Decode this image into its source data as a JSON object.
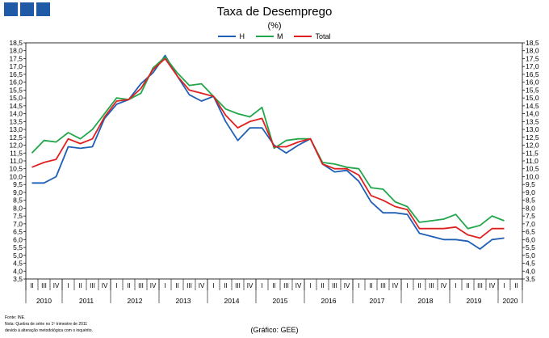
{
  "chart_data": {
    "type": "line",
    "title": "Taxa de Desemprego",
    "subtitle": "(%)",
    "ylim": [
      3.5,
      18.5
    ],
    "ytick_step": 0.5,
    "grid": false,
    "legend_position": "top-center",
    "quarter_labels": [
      "II",
      "III",
      "IV",
      "I",
      "II",
      "III",
      "IV",
      "I",
      "II",
      "III",
      "IV",
      "I",
      "II",
      "III",
      "IV",
      "I",
      "II",
      "III",
      "IV",
      "I",
      "II",
      "III",
      "IV",
      "I",
      "II",
      "III",
      "IV",
      "I",
      "II",
      "III",
      "IV",
      "I",
      "II",
      "III",
      "IV",
      "I",
      "II",
      "III",
      "IV",
      "I",
      "II"
    ],
    "year_labels": [
      {
        "label": "2010",
        "start": 0,
        "end": 2
      },
      {
        "label": "2011",
        "start": 3,
        "end": 6
      },
      {
        "label": "2012",
        "start": 7,
        "end": 10
      },
      {
        "label": "2013",
        "start": 11,
        "end": 14
      },
      {
        "label": "2014",
        "start": 15,
        "end": 18
      },
      {
        "label": "2015",
        "start": 19,
        "end": 22
      },
      {
        "label": "2016",
        "start": 23,
        "end": 26
      },
      {
        "label": "2017",
        "start": 27,
        "end": 30
      },
      {
        "label": "2018",
        "start": 31,
        "end": 34
      },
      {
        "label": "2019",
        "start": 35,
        "end": 38
      },
      {
        "label": "2020",
        "start": 39,
        "end": 40
      }
    ],
    "series": [
      {
        "name": "H",
        "color": "#1f5fb5",
        "values": [
          9.6,
          9.6,
          10.0,
          11.9,
          11.8,
          11.9,
          13.7,
          14.6,
          14.9,
          15.9,
          16.6,
          17.7,
          16.4,
          15.2,
          14.8,
          15.1,
          13.5,
          12.3,
          13.1,
          13.1,
          12.0,
          11.5,
          12.0,
          12.4,
          10.8,
          10.3,
          10.4,
          9.7,
          8.4,
          7.7,
          7.7,
          7.6,
          6.4,
          6.2,
          6.0,
          6.0,
          5.9,
          5.4,
          6.0,
          6.1,
          null
        ]
      },
      {
        "name": "M",
        "color": "#22a64a",
        "values": [
          11.5,
          12.3,
          12.2,
          12.8,
          12.4,
          13.0,
          14.0,
          15.0,
          14.9,
          15.3,
          16.9,
          17.6,
          16.6,
          15.8,
          15.9,
          15.1,
          14.3,
          14.0,
          13.8,
          14.4,
          11.8,
          12.3,
          12.4,
          12.4,
          10.9,
          10.8,
          10.6,
          10.5,
          9.3,
          9.2,
          8.4,
          8.1,
          7.1,
          7.2,
          7.3,
          7.6,
          6.7,
          6.9,
          7.5,
          7.2,
          null
        ]
      },
      {
        "name": "Total",
        "color": "#e02020",
        "values": [
          10.6,
          10.9,
          11.1,
          12.4,
          12.1,
          12.4,
          13.8,
          14.8,
          14.9,
          15.6,
          16.8,
          17.5,
          16.4,
          15.5,
          15.3,
          15.1,
          13.9,
          13.1,
          13.5,
          13.7,
          11.9,
          11.9,
          12.2,
          12.4,
          10.8,
          10.5,
          10.5,
          10.1,
          8.8,
          8.5,
          8.1,
          7.9,
          6.7,
          6.7,
          6.7,
          6.8,
          6.3,
          6.1,
          6.7,
          6.7,
          null
        ]
      }
    ]
  },
  "footer": {
    "notes": [
      "Fonte: INE.",
      "Nota: Quebra de série no 1º trimestre de 2011",
      "devido à alteração metodológica com o inquérito."
    ],
    "source": "(Gráfico: GEE)"
  }
}
